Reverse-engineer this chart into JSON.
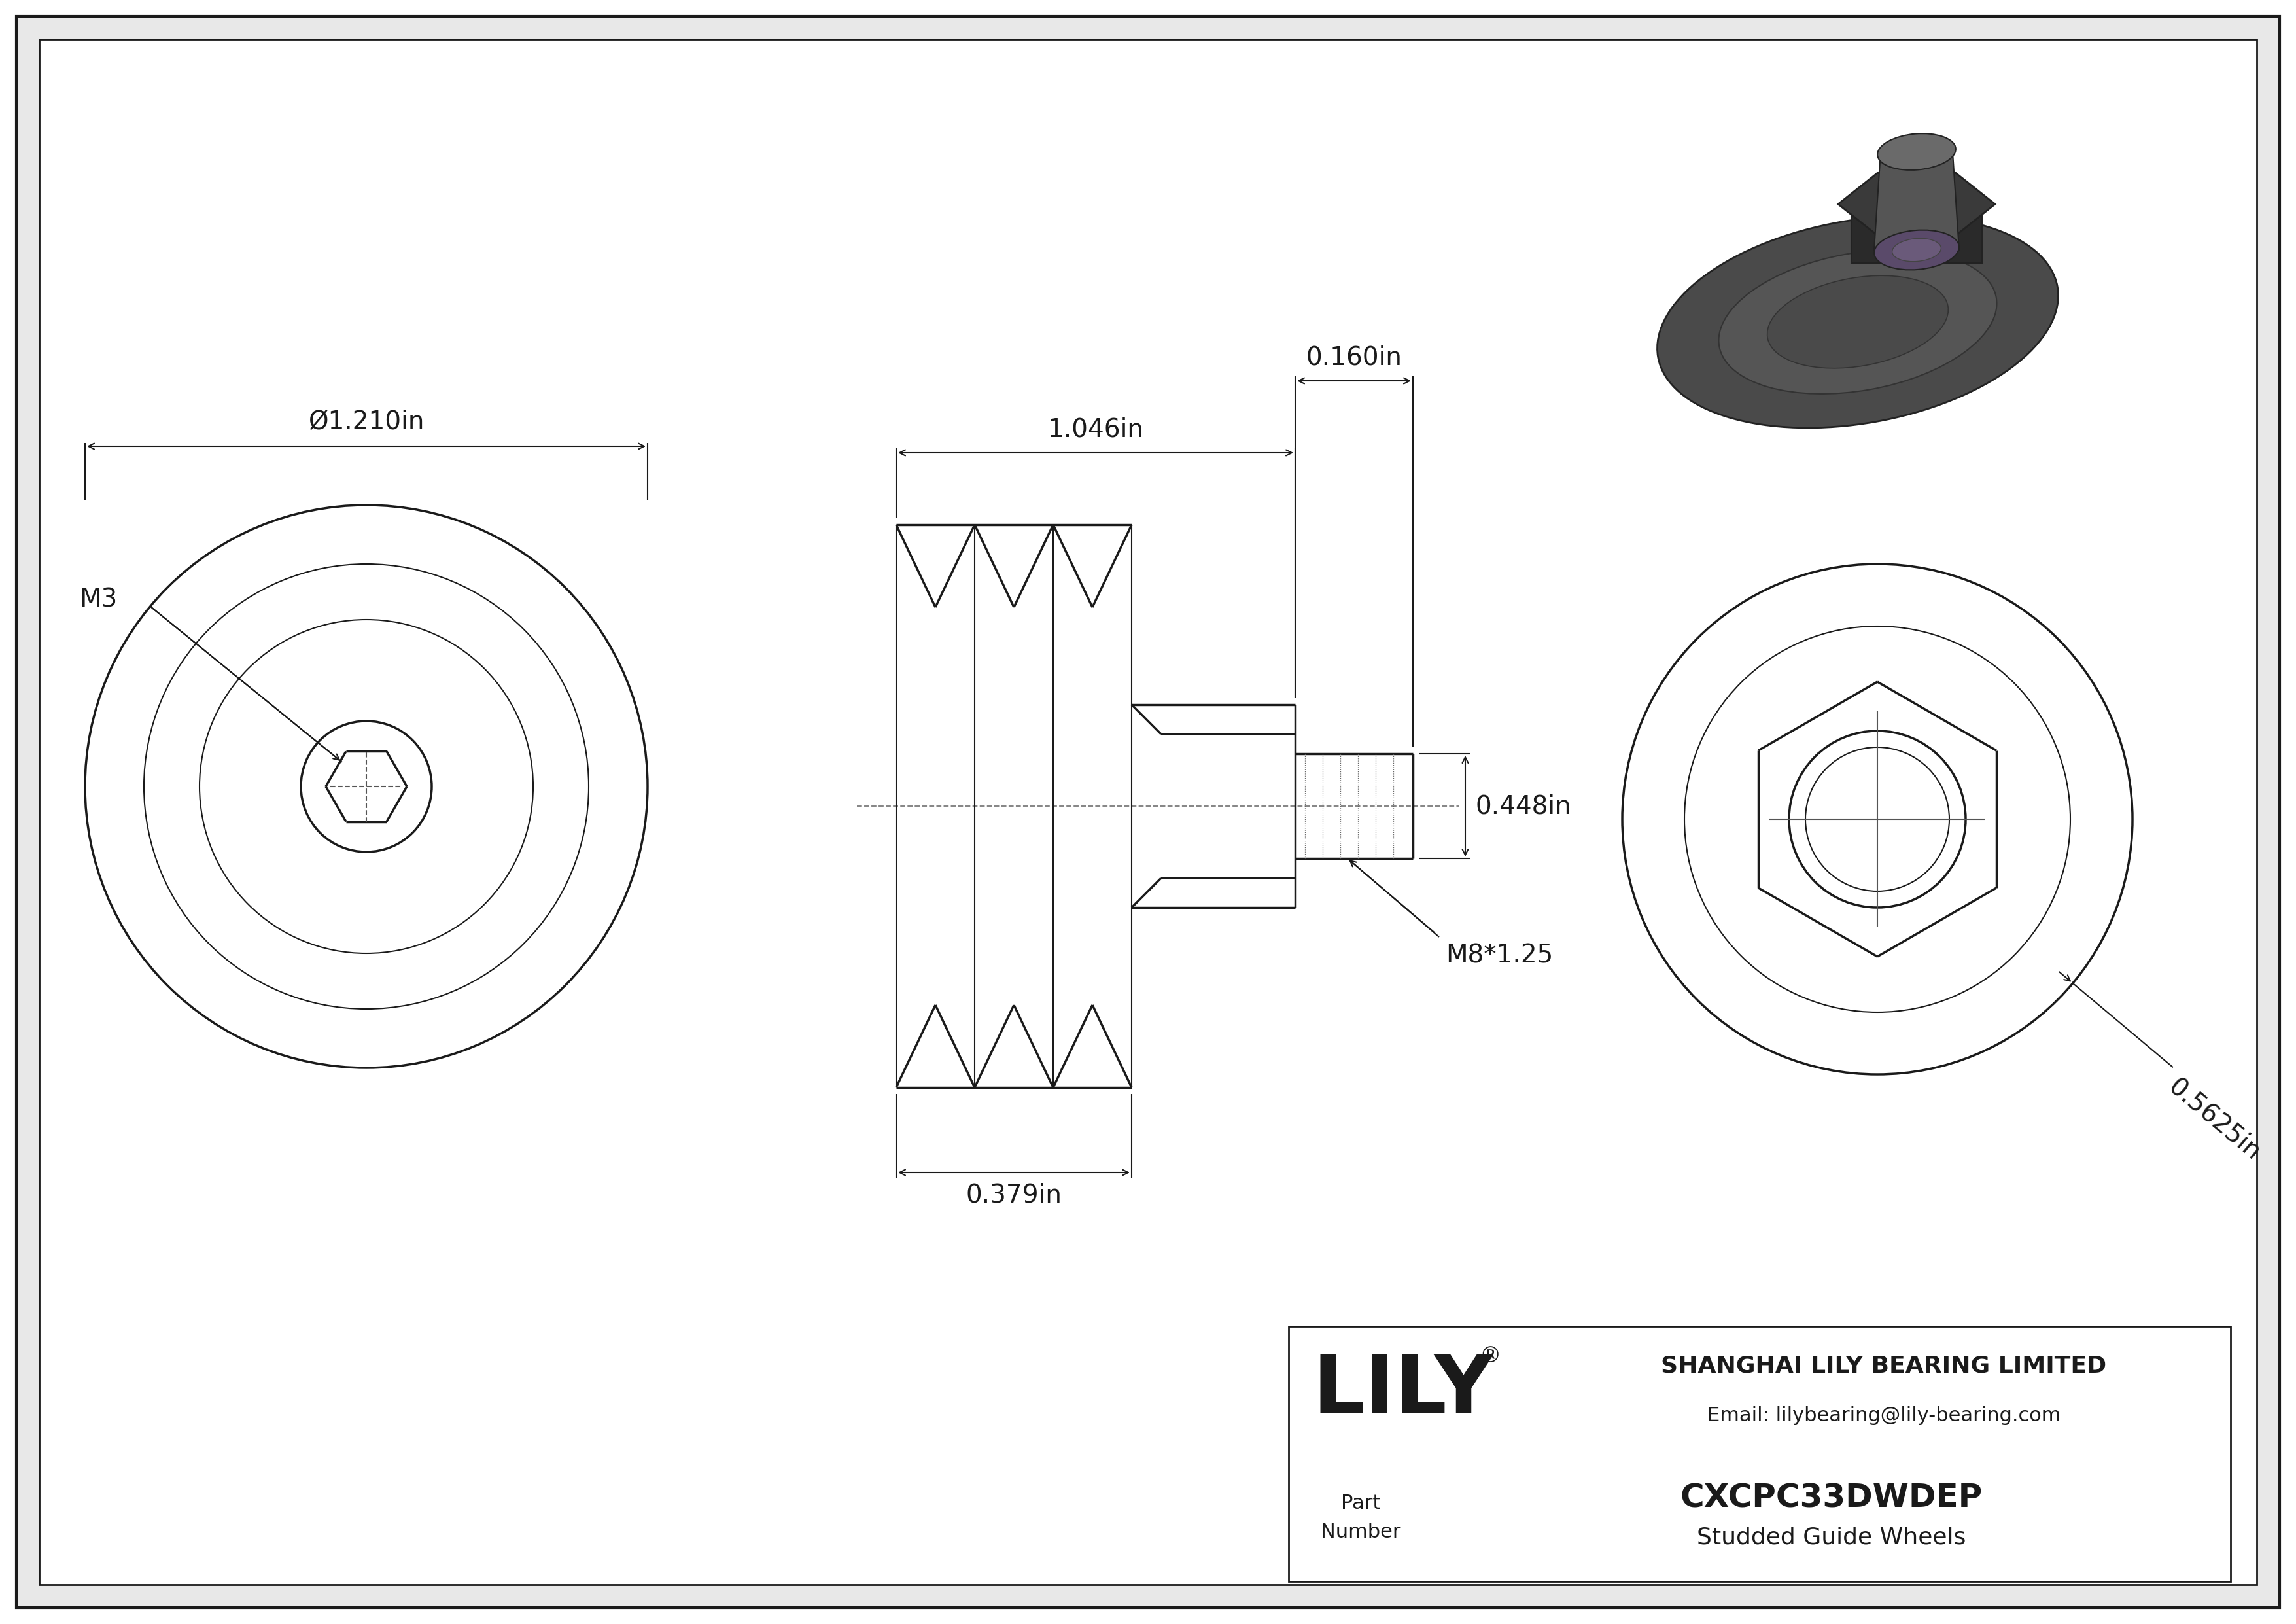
{
  "bg_color": "#ffffff",
  "border_color": "#1a1a1a",
  "line_color": "#1a1a1a",
  "lw": 2.5,
  "tlw": 1.5,
  "dlw": 1.5,
  "part_number": "CXCPC33DWDEP",
  "part_desc": "Studded Guide Wheels",
  "company": "SHANGHAI LILY BEARING LIMITED",
  "email": "Email: lilybearing@lily-bearing.com",
  "dim_phi": "Ø1.210in",
  "dim_1046": "1.046in",
  "dim_0160": "0.160in",
  "dim_0448": "0.448in",
  "dim_0379": "0.379in",
  "dim_m3": "M3",
  "dim_m8": "M8*1.25",
  "dim_05625": "0.5625in",
  "fs": 28,
  "fs_small": 22,
  "fs_lily": 90,
  "fs_company": 26,
  "fs_pn": 36,
  "fs_pndesc": 26
}
